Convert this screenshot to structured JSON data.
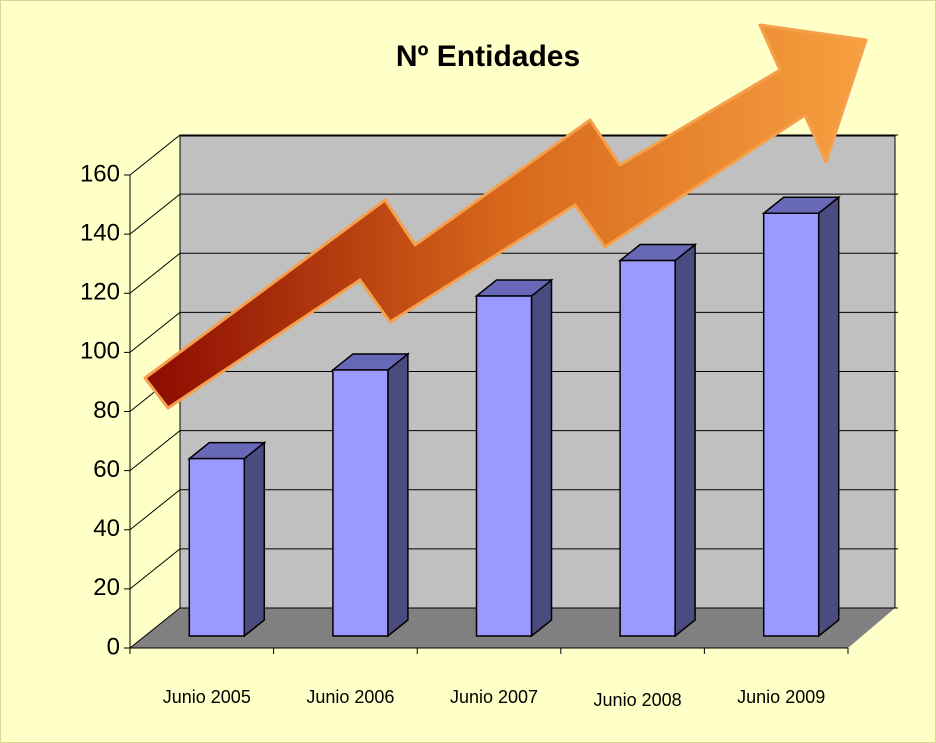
{
  "chart_data": {
    "type": "bar3d",
    "title": "Nº Entidades",
    "categories": [
      "Junio 2005",
      "Junio 2006",
      "Junio 2007",
      "Junio 2008",
      "Junio 2009"
    ],
    "values": [
      60,
      90,
      115,
      127,
      143
    ],
    "color": "#9999ff",
    "ylim": [
      0,
      160
    ],
    "yticks": [
      0,
      20,
      40,
      60,
      80,
      100,
      120,
      140,
      160
    ],
    "grid": true
  }
}
